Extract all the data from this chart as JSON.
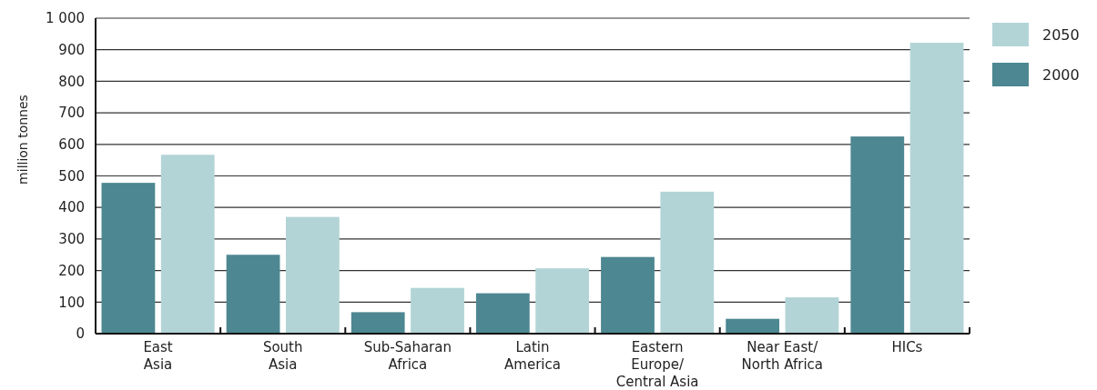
{
  "chart_data": {
    "type": "bar",
    "ylabel": "million tonnes",
    "categories": [
      "East\nAsia",
      "South\nAsia",
      "Sub-Saharan\nAfrica",
      "Latin\nAmerica",
      "Eastern\nEurope/\nCentral Asia",
      "Near East/\nNorth Africa",
      "HICs"
    ],
    "series": [
      {
        "name": "2000",
        "color": "#4d8791",
        "values": [
          478,
          250,
          68,
          128,
          243,
          47,
          625
        ]
      },
      {
        "name": "2050",
        "color": "#b3d4d6",
        "values": [
          567,
          370,
          145,
          207,
          450,
          115,
          922
        ]
      }
    ],
    "ylim": [
      0,
      1000
    ],
    "yticks": [
      0,
      100,
      200,
      300,
      400,
      500,
      600,
      700,
      800,
      900,
      {
        "value": 1000,
        "label": "1 000"
      }
    ],
    "grid": "y",
    "legend": "top right"
  }
}
